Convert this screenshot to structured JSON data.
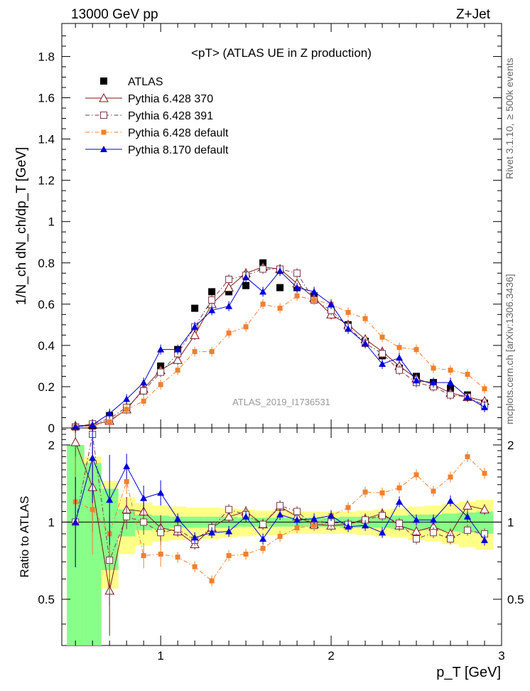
{
  "header": {
    "left": "13000 GeV pp",
    "right": "Z+Jet"
  },
  "side_labels": {
    "rivet_prefix": "Rivet 3.1.10,",
    "rivet_events": "≥ 500k events",
    "source": "mcplots.cern.ch [arXiv:1306.3436]"
  },
  "chart_data": [
    {
      "type": "scatter",
      "title": "<pT> (ATLAS UE in Z production)",
      "ylabel": "1/N_ch dN_ch/dp_T [GeV]",
      "xlabel": "p_T [GeV]",
      "watermark": "ATLAS_2019_I1736531",
      "xlim": [
        0.42,
        3.0
      ],
      "ylim": [
        0.0,
        1.96
      ],
      "legend_position": "top-left",
      "x": [
        0.5,
        0.6,
        0.7,
        0.8,
        0.9,
        1.0,
        1.1,
        1.2,
        1.3,
        1.4,
        1.5,
        1.6,
        1.7,
        1.8,
        1.9,
        2.0,
        2.1,
        2.2,
        2.3,
        2.4,
        2.5,
        2.6,
        2.7,
        2.8,
        2.9
      ],
      "yticks": [
        "0",
        "0.2",
        "0.4",
        "0.6",
        "0.8",
        "1",
        "1.2",
        "1.4",
        "1.6",
        "1.8"
      ],
      "series": [
        {
          "name": "ATLAS",
          "color": "#000000",
          "marker": "square-filled",
          "values": [
            0.005,
            0.01,
            0.06,
            0.09,
            0.18,
            0.3,
            0.38,
            0.58,
            0.66,
            0.66,
            0.69,
            0.8,
            0.68,
            0.68,
            0.64,
            0.57,
            0.5,
            0.42,
            0.35,
            0.29,
            0.25,
            0.22,
            0.19,
            0.16,
            0.12
          ]
        },
        {
          "name": "Pythia 6.428 370",
          "color": "#7a1616",
          "marker": "triangle-open",
          "dash": "",
          "values": [
            0.01,
            0.015,
            0.035,
            0.09,
            0.19,
            0.28,
            0.33,
            0.45,
            0.6,
            0.68,
            0.75,
            0.78,
            0.77,
            0.7,
            0.63,
            0.55,
            0.5,
            0.43,
            0.37,
            0.3,
            0.24,
            0.21,
            0.17,
            0.15,
            0.13
          ]
        },
        {
          "name": "Pythia 6.428 391",
          "color": "#7a3a4a",
          "marker": "square-open",
          "dash": "6,3,1.5,3",
          "values": [
            0.005,
            0.02,
            0.045,
            0.1,
            0.18,
            0.27,
            0.36,
            0.49,
            0.62,
            0.72,
            0.74,
            0.77,
            0.77,
            0.75,
            0.62,
            0.57,
            0.49,
            0.41,
            0.36,
            0.28,
            0.22,
            0.2,
            0.16,
            0.15,
            0.11
          ]
        },
        {
          "name": "Pythia 6.428 default",
          "color": "#f08030",
          "marker": "square-filled-small",
          "dash": "6,3,1.5,3",
          "values": [
            0.005,
            0.01,
            0.03,
            0.09,
            0.13,
            0.21,
            0.28,
            0.37,
            0.37,
            0.46,
            0.49,
            0.6,
            0.58,
            0.64,
            0.62,
            0.6,
            0.56,
            0.53,
            0.44,
            0.39,
            0.38,
            0.29,
            0.28,
            0.26,
            0.19
          ]
        },
        {
          "name": "Pythia 8.170 default",
          "color": "#0000d8",
          "marker": "triangle-filled",
          "dash": "",
          "values": [
            0.005,
            0.015,
            0.07,
            0.14,
            0.22,
            0.38,
            0.38,
            0.49,
            0.57,
            0.59,
            0.73,
            0.66,
            0.76,
            0.68,
            0.66,
            0.6,
            0.48,
            0.41,
            0.31,
            0.34,
            0.23,
            0.22,
            0.22,
            0.15,
            0.1
          ]
        }
      ]
    },
    {
      "type": "line",
      "ylabel": "Ratio to ATLAS",
      "xlabel": "p_T [GeV]",
      "xlim": [
        0.42,
        3.0
      ],
      "ylim": [
        0.33,
        2.33
      ],
      "yscale": "log",
      "xticks": [
        "1",
        "2",
        "3"
      ],
      "yticks": [
        "0.5",
        "1",
        "2"
      ],
      "x": [
        0.5,
        0.6,
        0.7,
        0.8,
        0.9,
        1.0,
        1.1,
        1.2,
        1.3,
        1.4,
        1.5,
        1.6,
        1.7,
        1.8,
        1.9,
        2.0,
        2.1,
        2.2,
        2.3,
        2.4,
        2.5,
        2.6,
        2.7,
        2.8,
        2.9
      ],
      "bands": {
        "inner_color": "#88ff88",
        "outer_color": "#ffff88",
        "inner_half_width": [
          1.0,
          0.7,
          0.35,
          0.12,
          0.07,
          0.06,
          0.05,
          0.05,
          0.05,
          0.05,
          0.04,
          0.04,
          0.04,
          0.04,
          0.04,
          0.04,
          0.05,
          0.05,
          0.05,
          0.06,
          0.07,
          0.07,
          0.08,
          0.09,
          0.1
        ],
        "outer_half_width": [
          1.0,
          0.8,
          0.45,
          0.25,
          0.19,
          0.16,
          0.15,
          0.14,
          0.14,
          0.13,
          0.12,
          0.11,
          0.11,
          0.1,
          0.1,
          0.1,
          0.1,
          0.11,
          0.12,
          0.13,
          0.15,
          0.16,
          0.18,
          0.2,
          0.22
        ]
      },
      "series": [
        {
          "name": "Pythia 6.428 370",
          "color": "#7a1616",
          "marker": "triangle-open",
          "dash": "",
          "values": [
            2.05,
            1.37,
            0.54,
            1.12,
            1.1,
            0.95,
            0.92,
            0.82,
            0.95,
            1.05,
            1.1,
            0.98,
            1.15,
            1.05,
            0.98,
            0.97,
            0.98,
            1.03,
            1.08,
            0.97,
            0.92,
            0.96,
            0.9,
            1.16,
            1.12
          ]
        },
        {
          "name": "Pythia 6.428 391",
          "color": "#7a3a4a",
          "marker": "square-open",
          "dash": "6,3,1.5,3",
          "values": [
            1.0,
            2.2,
            0.71,
            1.05,
            1.0,
            0.91,
            0.94,
            0.85,
            0.95,
            1.12,
            1.07,
            0.98,
            1.16,
            1.1,
            0.97,
            1.0,
            0.98,
            1.02,
            1.06,
            0.99,
            0.86,
            0.91,
            0.86,
            0.93,
            0.9
          ]
        },
        {
          "name": "Pythia 6.428 default",
          "color": "#f08030",
          "marker": "square-filled-small",
          "dash": "6,3,1.5,3",
          "values": [
            1.2,
            1.12,
            0.9,
            1.44,
            0.74,
            0.75,
            0.73,
            0.67,
            0.59,
            0.74,
            0.75,
            0.79,
            0.88,
            0.95,
            0.97,
            1.06,
            1.14,
            1.31,
            1.3,
            1.36,
            1.53,
            1.32,
            1.5,
            1.8,
            1.55
          ]
        },
        {
          "name": "Pythia 8.170 default",
          "color": "#0000d8",
          "marker": "triangle-filled",
          "dash": "",
          "values": [
            1.0,
            1.78,
            1.22,
            1.65,
            1.24,
            1.3,
            1.03,
            0.87,
            0.91,
            0.92,
            1.05,
            0.86,
            1.07,
            1.02,
            1.03,
            1.06,
            0.96,
            0.97,
            0.91,
            1.2,
            1.02,
            1.02,
            1.21,
            1.05,
            0.85
          ]
        }
      ]
    }
  ]
}
